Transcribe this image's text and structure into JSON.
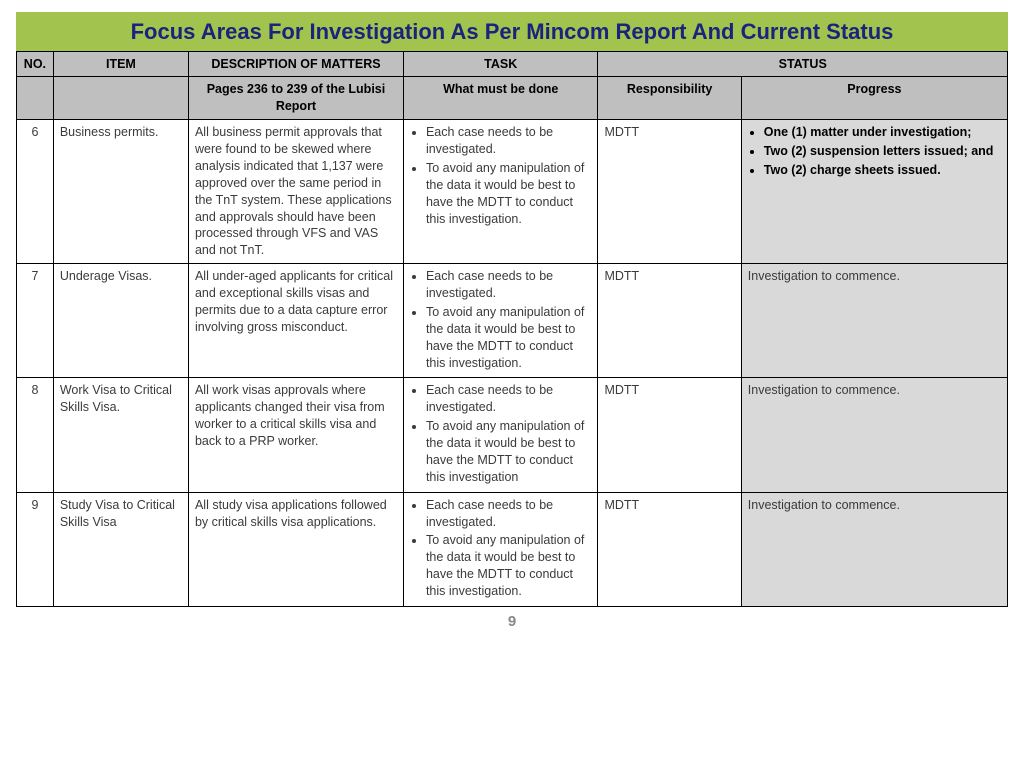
{
  "title": "Focus Areas For Investigation As Per Mincom Report And Current Status",
  "page_number": "9",
  "colors": {
    "title_bg": "#a3c34f",
    "title_text": "#1a237e",
    "header_bg": "#bfbfbf",
    "progress_bg": "#d9d9d9",
    "border": "#000000",
    "body_text": "#3b3b3b",
    "pagenum_text": "#888888"
  },
  "columns": {
    "no": "NO.",
    "item": "ITEM",
    "desc": "DESCRIPTION OF MATTERS",
    "task": "TASK",
    "status": "STATUS",
    "sub_desc": "Pages 236 to 239 of the Lubisi Report",
    "sub_task": "What must be done",
    "sub_resp": "Responsibility",
    "sub_prog": "Progress"
  },
  "rows": [
    {
      "no": "6",
      "item": "Business permits.",
      "desc": "All business permit approvals that were found to be skewed where analysis indicated that 1,137 were approved over the same period in the TnT system. These applications and approvals should have been processed through VFS and VAS and not TnT.",
      "tasks": [
        "Each case needs to be investigated.",
        "To avoid any manipulation of the data it would be best to have the MDTT to conduct this investigation."
      ],
      "responsibility": "MDTT",
      "progress_bold": true,
      "progress_items": [
        "One (1) matter under investigation;",
        "Two (2) suspension letters issued; and",
        "Two (2) charge sheets issued."
      ]
    },
    {
      "no": "7",
      "item": "Underage Visas.",
      "desc": "All under-aged applicants for critical and exceptional skills visas and permits due to a data capture error involving gross misconduct.",
      "tasks": [
        "Each case needs to be investigated.",
        "To avoid any manipulation of the data it would be best to have the MDTT to conduct this investigation."
      ],
      "responsibility": "MDTT",
      "progress_text": "Investigation to commence."
    },
    {
      "no": "8",
      "item": "Work Visa to Critical Skills Visa.",
      "desc": "All work visas approvals where applicants changed their visa from worker to a critical skills visa and back to a PRP worker.",
      "tasks": [
        "Each case needs to be investigated.",
        "To avoid any manipulation of the data it would be best to have the MDTT to conduct this investigation"
      ],
      "responsibility": "MDTT",
      "progress_text": "Investigation to commence."
    },
    {
      "no": "9",
      "item": "Study Visa to Critical Skills Visa",
      "desc": "All study visa applications followed by critical skills visa applications.",
      "tasks": [
        "Each case needs to be investigated.",
        "To avoid any manipulation of the data it would be best to have the MDTT to conduct this investigation."
      ],
      "responsibility": "MDTT",
      "progress_text": "Investigation to commence."
    }
  ]
}
